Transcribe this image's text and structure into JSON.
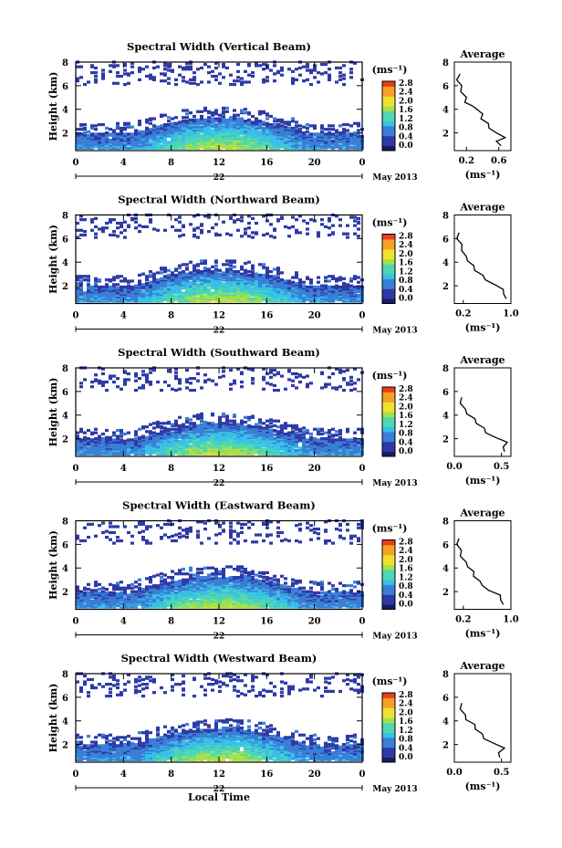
{
  "figure": {
    "xlabel": "Local Time",
    "colorbar_unit": "(ms⁻¹)",
    "avg_title": "Average",
    "avg_xlabel": "(ms⁻¹)",
    "ylabel": "Height (km)",
    "date_label": "May 2013",
    "day_label": "22",
    "colorbar_ticks": [
      "0.0",
      "0.4",
      "0.8",
      "1.2",
      "1.6",
      "2.0",
      "2.4",
      "2.8"
    ],
    "colors": {
      "low": "#2e3aa6",
      "colorscale": [
        "#1a1a66",
        "#2e3aa6",
        "#3a7fd6",
        "#38c0e8",
        "#4fd8b0",
        "#a6e04a",
        "#f0e030",
        "#f7a028",
        "#e8401c"
      ]
    }
  },
  "chart_data": [
    {
      "type": "heatmap",
      "title": "Spectral Width (Vertical Beam)",
      "ylabel": "Height (km)",
      "x_ticks": [
        "0",
        "4",
        "8",
        "12",
        "16",
        "20",
        "0"
      ],
      "y_ticks": [
        "2",
        "4",
        "6",
        "8"
      ],
      "xlim": [
        0,
        24
      ],
      "ylim": [
        0.5,
        8
      ],
      "avg": {
        "title": "Average",
        "x_ticks": [
          "0.2",
          "0.6"
        ],
        "xlim": [
          0.05,
          0.75
        ],
        "y_ticks": [
          "2",
          "4",
          "6",
          "8"
        ],
        "ylim": [
          0.5,
          8
        ],
        "profile": [
          [
            0.9,
            0.65
          ],
          [
            1.3,
            0.55
          ],
          [
            1.6,
            0.7
          ],
          [
            2.0,
            0.55
          ],
          [
            2.4,
            0.5
          ],
          [
            2.8,
            0.45
          ],
          [
            3.2,
            0.4
          ],
          [
            3.6,
            0.38
          ],
          [
            4.0,
            0.35
          ],
          [
            4.3,
            0.25
          ],
          [
            4.6,
            0.2
          ],
          [
            5.0,
            0.18
          ],
          [
            5.5,
            0.15
          ],
          [
            6.0,
            0.12
          ],
          [
            6.5,
            0.1
          ],
          [
            7.0,
            0.1
          ]
        ]
      }
    },
    {
      "type": "heatmap",
      "title": "Spectral Width (Northward Beam)",
      "ylabel": "Height (km)",
      "x_ticks": [
        "0",
        "4",
        "8",
        "12",
        "16",
        "20",
        "0"
      ],
      "y_ticks": [
        "2",
        "4",
        "6",
        "8"
      ],
      "xlim": [
        0,
        24
      ],
      "ylim": [
        0.5,
        8
      ],
      "avg": {
        "title": "Average",
        "x_ticks": [
          "0.2",
          "1.0"
        ],
        "xlim": [
          0.05,
          1.0
        ],
        "y_ticks": [
          "2",
          "4",
          "6",
          "8"
        ],
        "ylim": [
          0.5,
          8
        ],
        "profile": [
          [
            0.9,
            0.95
          ],
          [
            1.3,
            0.85
          ],
          [
            1.7,
            0.9
          ],
          [
            2.1,
            0.7
          ],
          [
            2.5,
            0.6
          ],
          [
            2.9,
            0.5
          ],
          [
            3.3,
            0.42
          ],
          [
            3.7,
            0.35
          ],
          [
            4.1,
            0.3
          ],
          [
            4.5,
            0.22
          ],
          [
            5.0,
            0.2
          ],
          [
            5.5,
            0.15
          ],
          [
            6.0,
            0.12
          ],
          [
            6.5,
            0.1
          ]
        ]
      }
    },
    {
      "type": "heatmap",
      "title": "Spectral Width (Southward Beam)",
      "ylabel": "Height (km)",
      "x_ticks": [
        "0",
        "4",
        "8",
        "12",
        "16",
        "20",
        "0"
      ],
      "y_ticks": [
        "2",
        "4",
        "6",
        "8"
      ],
      "xlim": [
        0,
        24
      ],
      "ylim": [
        0.5,
        8
      ],
      "avg": {
        "title": "Average",
        "x_ticks": [
          "0.0",
          "0.5"
        ],
        "xlim": [
          0.0,
          0.6
        ],
        "y_ticks": [
          "2",
          "4",
          "6",
          "8"
        ],
        "ylim": [
          0.5,
          8
        ],
        "profile": [
          [
            0.9,
            0.55
          ],
          [
            1.3,
            0.5
          ],
          [
            1.7,
            0.58
          ],
          [
            2.1,
            0.42
          ],
          [
            2.5,
            0.35
          ],
          [
            2.9,
            0.3
          ],
          [
            3.3,
            0.25
          ],
          [
            3.7,
            0.2
          ],
          [
            4.1,
            0.15
          ],
          [
            4.5,
            0.1
          ],
          [
            5.0,
            0.08
          ],
          [
            5.5,
            0.06
          ]
        ]
      }
    },
    {
      "type": "heatmap",
      "title": "Spectral Width (Eastward Beam)",
      "ylabel": "Height (km)",
      "x_ticks": [
        "0",
        "4",
        "8",
        "12",
        "16",
        "20",
        "0"
      ],
      "y_ticks": [
        "2",
        "4",
        "6",
        "8"
      ],
      "xlim": [
        0,
        24
      ],
      "ylim": [
        0.5,
        8
      ],
      "avg": {
        "title": "Average",
        "x_ticks": [
          "0.2",
          "1.0"
        ],
        "xlim": [
          0.05,
          1.0
        ],
        "y_ticks": [
          "2",
          "4",
          "6",
          "8"
        ],
        "ylim": [
          0.5,
          8
        ],
        "profile": [
          [
            0.9,
            0.9
          ],
          [
            1.3,
            0.8
          ],
          [
            1.7,
            0.85
          ],
          [
            2.1,
            0.6
          ],
          [
            2.5,
            0.55
          ],
          [
            2.9,
            0.45
          ],
          [
            3.3,
            0.4
          ],
          [
            3.7,
            0.35
          ],
          [
            4.1,
            0.3
          ],
          [
            4.5,
            0.22
          ],
          [
            5.0,
            0.18
          ],
          [
            5.5,
            0.14
          ],
          [
            6.0,
            0.12
          ],
          [
            6.5,
            0.1
          ]
        ]
      }
    },
    {
      "type": "heatmap",
      "title": "Spectral Width (Westward Beam)",
      "ylabel": "Height (km)",
      "x_ticks": [
        "0",
        "4",
        "8",
        "12",
        "16",
        "20",
        "0"
      ],
      "y_ticks": [
        "2",
        "4",
        "6",
        "8"
      ],
      "xlim": [
        0,
        24
      ],
      "ylim": [
        0.5,
        8
      ],
      "avg": {
        "title": "Average",
        "x_ticks": [
          "0.0",
          "0.5"
        ],
        "xlim": [
          0.0,
          0.6
        ],
        "y_ticks": [
          "2",
          "4",
          "6",
          "8"
        ],
        "ylim": [
          0.5,
          8
        ],
        "profile": [
          [
            0.9,
            0.5
          ],
          [
            1.3,
            0.45
          ],
          [
            1.7,
            0.55
          ],
          [
            2.1,
            0.4
          ],
          [
            2.5,
            0.33
          ],
          [
            2.9,
            0.28
          ],
          [
            3.3,
            0.24
          ],
          [
            3.7,
            0.2
          ],
          [
            4.1,
            0.14
          ],
          [
            4.5,
            0.1
          ],
          [
            5.0,
            0.08
          ],
          [
            5.5,
            0.06
          ]
        ]
      }
    }
  ]
}
